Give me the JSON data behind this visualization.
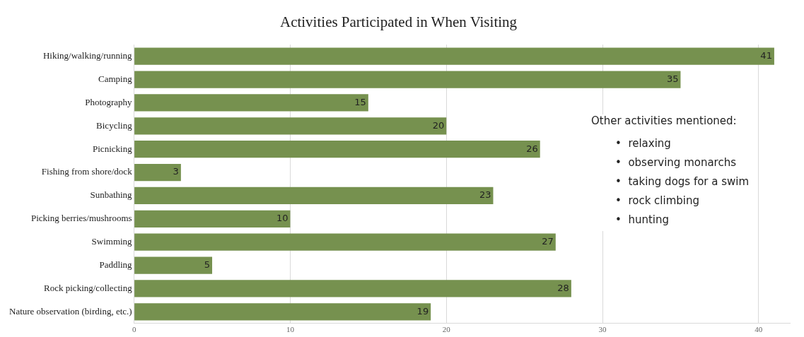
{
  "chart_data": {
    "type": "bar",
    "orientation": "horizontal",
    "title": "Activities Participated in When Visiting",
    "categories": [
      "Hiking/walking/running",
      "Camping",
      "Photography",
      "Bicycling",
      "Picnicking",
      "Fishing from shore/dock",
      "Sunbathing",
      "Picking berries/mushrooms",
      "Swimming",
      "Paddling",
      "Rock picking/collecting",
      "Nature observation (birding, etc.)"
    ],
    "values": [
      41,
      35,
      15,
      20,
      26,
      3,
      23,
      10,
      27,
      5,
      28,
      19
    ],
    "color": "#76914f",
    "xlim": [
      0,
      42
    ],
    "xticks": [
      0,
      10,
      20,
      30,
      40
    ],
    "grid": "x",
    "data_labels": true,
    "annotations": [
      "Other activities mentioned:",
      "•  relaxing",
      "•  observing monarchs",
      "•  taking dogs for a swim",
      "•  rock climbing",
      "•  hunting"
    ]
  }
}
